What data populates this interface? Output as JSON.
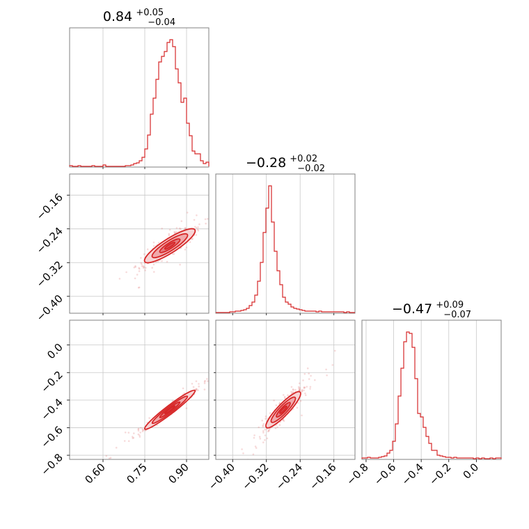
{
  "chart_data": {
    "type": "corner",
    "color": "#d62728",
    "parameters": [
      {
        "title_median": "0.84",
        "title_plus": "+0.05",
        "title_minus": "−0.04",
        "median": 0.84,
        "plus": 0.05,
        "minus": 0.04,
        "range": [
          0.48,
          0.98
        ],
        "ticks": [
          0.6,
          0.75,
          0.9
        ],
        "tick_labels": [
          "0.60",
          "0.75",
          "0.90"
        ],
        "hist_bins": [
          0.48,
          0.49,
          0.5,
          0.51,
          0.52,
          0.53,
          0.54,
          0.55,
          0.56,
          0.57,
          0.58,
          0.59,
          0.6,
          0.61,
          0.62,
          0.63,
          0.64,
          0.65,
          0.66,
          0.67,
          0.68,
          0.69,
          0.7,
          0.71,
          0.72,
          0.73,
          0.74,
          0.75,
          0.76,
          0.77,
          0.78,
          0.79,
          0.8,
          0.81,
          0.82,
          0.83,
          0.84,
          0.85,
          0.86,
          0.87,
          0.88,
          0.89,
          0.9,
          0.91,
          0.92,
          0.93,
          0.94,
          0.95,
          0.96,
          0.97,
          0.98
        ],
        "hist_counts": [
          1,
          0,
          0,
          1,
          0,
          0,
          0,
          0,
          1,
          0,
          0,
          0,
          2,
          0,
          0,
          0,
          0,
          0,
          0,
          0,
          1,
          1,
          2,
          4,
          5,
          8,
          13,
          25,
          45,
          75,
          98,
          125,
          150,
          158,
          165,
          178,
          182,
          172,
          140,
          120,
          92,
          98,
          62,
          44,
          22,
          18,
          18,
          8,
          4,
          6
        ]
      },
      {
        "title_median": "−0.28",
        "title_plus": "+0.02",
        "title_minus": "−0.02",
        "median": -0.28,
        "plus": 0.02,
        "minus": 0.02,
        "range": [
          -0.44,
          -0.11
        ],
        "ticks": [
          -0.4,
          -0.32,
          -0.24,
          -0.16
        ],
        "tick_labels": [
          "−0.40",
          "−0.32",
          "−0.24",
          "−0.16"
        ],
        "hist_bins": [
          -0.44,
          -0.4334,
          -0.4268,
          -0.4202,
          -0.4136,
          -0.407,
          -0.4004,
          -0.3938,
          -0.3872,
          -0.3806,
          -0.374,
          -0.3674,
          -0.3608,
          -0.3542,
          -0.3476,
          -0.341,
          -0.3344,
          -0.3278,
          -0.3212,
          -0.3146,
          -0.308,
          -0.3014,
          -0.2948,
          -0.2882,
          -0.2816,
          -0.275,
          -0.2684,
          -0.2618,
          -0.2552,
          -0.2486,
          -0.242,
          -0.2354,
          -0.2288,
          -0.2222,
          -0.2156,
          -0.209,
          -0.2024,
          -0.1958,
          -0.1892,
          -0.1826,
          -0.176,
          -0.1694,
          -0.1628,
          -0.1562,
          -0.1496,
          -0.143,
          -0.1364,
          -0.1298,
          -0.1232,
          -0.1166,
          -0.11
        ],
        "hist_counts": [
          0,
          0,
          0,
          0,
          0,
          1,
          1,
          2,
          2,
          3,
          4,
          6,
          10,
          15,
          25,
          45,
          72,
          115,
          150,
          182,
          130,
          88,
          60,
          40,
          22,
          15,
          12,
          8,
          6,
          5,
          4,
          3,
          2,
          2,
          2,
          2,
          1,
          2,
          1,
          1,
          1,
          1,
          1,
          1,
          1,
          1,
          0,
          1,
          0,
          0
        ]
      },
      {
        "title_median": "−0.47",
        "title_plus": "+0.09",
        "title_minus": "−0.07",
        "median": -0.47,
        "plus": 0.09,
        "minus": 0.07,
        "range": [
          -0.83,
          0.18
        ],
        "ticks": [
          -0.8,
          -0.6,
          -0.4,
          -0.2,
          0.0
        ],
        "tick_labels": [
          "−0.8",
          "−0.6",
          "−0.4",
          "−0.2",
          "0.0"
        ],
        "hist_bins": [
          -0.83,
          -0.8098,
          -0.7896,
          -0.7694,
          -0.7492,
          -0.729,
          -0.7088,
          -0.6886,
          -0.6684,
          -0.6482,
          -0.628,
          -0.6078,
          -0.5876,
          -0.5674,
          -0.5472,
          -0.527,
          -0.5068,
          -0.4866,
          -0.4664,
          -0.4462,
          -0.426,
          -0.4058,
          -0.3856,
          -0.3654,
          -0.3452,
          -0.325,
          -0.3048,
          -0.2846,
          -0.2644,
          -0.2442,
          -0.224,
          -0.2038,
          -0.1836,
          -0.1634,
          -0.1432,
          -0.123,
          -0.1028,
          -0.0826,
          -0.0624,
          -0.0422,
          -0.022,
          -0.0018,
          0.0184,
          0.0386,
          0.0588,
          0.079,
          0.0992,
          0.1194,
          0.1396,
          0.1598,
          0.18
        ],
        "hist_counts": [
          1,
          1,
          2,
          1,
          1,
          1,
          2,
          3,
          4,
          8,
          12,
          25,
          50,
          90,
          130,
          168,
          182,
          180,
          160,
          115,
          65,
          60,
          45,
          32,
          22,
          12,
          12,
          5,
          4,
          3,
          2,
          2,
          1,
          2,
          1,
          1,
          1,
          1,
          1,
          1,
          0,
          1,
          0,
          1,
          0,
          0,
          1,
          0,
          1,
          1
        ]
      }
    ],
    "pairs": [
      {
        "x": 0,
        "y": 1,
        "slope": 0.42,
        "sigma_x": 0.045,
        "sigma_perp": 0.01,
        "n_points": 450
      },
      {
        "x": 0,
        "y": 2,
        "slope": 1.55,
        "sigma_x": 0.045,
        "sigma_perp": 0.012,
        "n_points": 450
      },
      {
        "x": 1,
        "y": 2,
        "slope": 3.2,
        "sigma_x": 0.02,
        "sigma_perp": 0.03,
        "n_points": 450
      }
    ]
  }
}
